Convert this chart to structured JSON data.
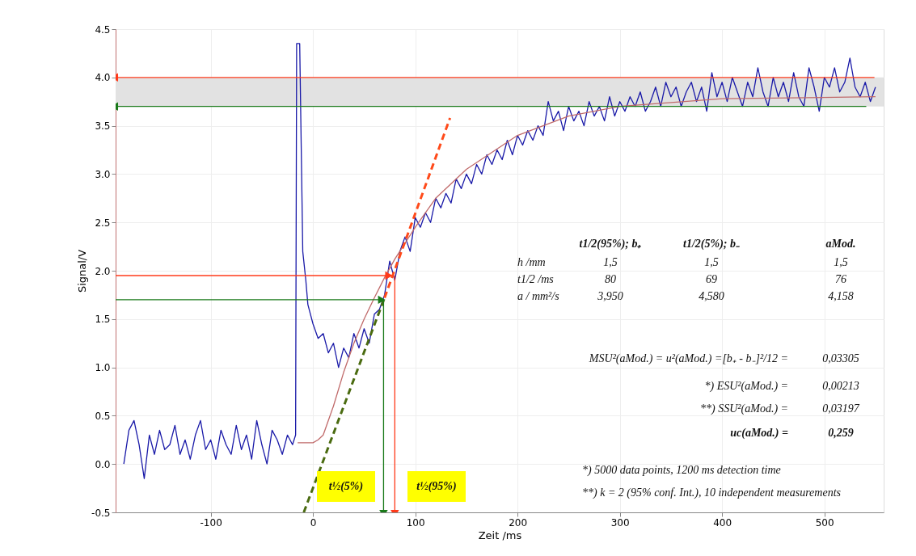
{
  "chart_data": {
    "type": "line",
    "xlabel": "Zeit /ms",
    "ylabel": "Signal/V",
    "xlim": [
      -193,
      558
    ],
    "xticks": [
      -100,
      0,
      100,
      200,
      300,
      400,
      500
    ],
    "ylim": [
      -0.5,
      4.5
    ],
    "yticks": [
      -0.5,
      {
        "value": 0,
        "label": "0.0"
      },
      0.5,
      {
        "value": 1,
        "label": "1.0"
      },
      1.5,
      {
        "value": 2,
        "label": "2.0"
      },
      2.5,
      {
        "value": 3,
        "label": "3.0"
      },
      3.5,
      {
        "value": 4,
        "label": "4.0"
      },
      4.5
    ],
    "grid": true,
    "bands": [
      {
        "axis": "y",
        "from": 3.7,
        "to": 4.0,
        "color": "#e2e2e2"
      }
    ],
    "series": [
      {
        "type": "line",
        "color": "#1a1aa8",
        "line_style": "solid",
        "x": [
          -185,
          -180,
          -175,
          -170,
          -165,
          -160,
          -155,
          -150,
          -145,
          -140,
          -135,
          -130,
          -125,
          -120,
          -115,
          -110,
          -105,
          -100,
          -95,
          -90,
          -85,
          -80,
          -75,
          -70,
          -65,
          -60,
          -55,
          -50,
          -45,
          -40,
          -35,
          -30,
          -25,
          -20,
          -17,
          -16,
          -13,
          -10,
          -7,
          -5,
          0,
          5,
          10,
          15,
          20,
          25,
          30,
          35,
          40,
          45,
          50,
          55,
          60,
          65,
          70,
          75,
          80,
          85,
          90,
          95,
          100,
          105,
          110,
          115,
          120,
          125,
          130,
          135,
          140,
          145,
          150,
          155,
          160,
          165,
          170,
          175,
          180,
          185,
          190,
          195,
          200,
          205,
          210,
          215,
          220,
          225,
          230,
          235,
          240,
          245,
          250,
          255,
          260,
          265,
          270,
          275,
          280,
          285,
          290,
          295,
          300,
          305,
          310,
          315,
          320,
          325,
          330,
          335,
          340,
          345,
          350,
          355,
          360,
          365,
          370,
          375,
          380,
          385,
          390,
          395,
          400,
          405,
          410,
          415,
          420,
          425,
          430,
          435,
          440,
          445,
          450,
          455,
          460,
          465,
          470,
          475,
          480,
          485,
          490,
          495,
          500,
          505,
          510,
          515,
          520,
          525,
          530,
          535,
          540,
          545,
          550
        ],
        "values": [
          0.0,
          0.35,
          0.45,
          0.2,
          -0.15,
          0.3,
          0.1,
          0.35,
          0.15,
          0.2,
          0.4,
          0.1,
          0.25,
          0.05,
          0.3,
          0.45,
          0.15,
          0.25,
          0.05,
          0.35,
          0.2,
          0.1,
          0.4,
          0.15,
          0.3,
          0.05,
          0.45,
          0.2,
          0.0,
          0.35,
          0.25,
          0.1,
          0.3,
          0.2,
          0.3,
          4.35,
          4.35,
          2.2,
          1.9,
          1.65,
          1.45,
          1.3,
          1.35,
          1.15,
          1.25,
          1.0,
          1.2,
          1.1,
          1.35,
          1.2,
          1.4,
          1.25,
          1.55,
          1.6,
          1.75,
          2.1,
          1.9,
          2.2,
          2.35,
          2.2,
          2.55,
          2.45,
          2.6,
          2.5,
          2.75,
          2.65,
          2.8,
          2.7,
          2.95,
          2.85,
          3.0,
          2.9,
          3.1,
          3.0,
          3.2,
          3.1,
          3.25,
          3.15,
          3.35,
          3.2,
          3.4,
          3.3,
          3.45,
          3.35,
          3.5,
          3.4,
          3.75,
          3.55,
          3.65,
          3.45,
          3.7,
          3.55,
          3.65,
          3.5,
          3.75,
          3.6,
          3.7,
          3.55,
          3.8,
          3.6,
          3.75,
          3.65,
          3.8,
          3.7,
          3.85,
          3.65,
          3.75,
          3.9,
          3.7,
          3.95,
          3.8,
          3.9,
          3.7,
          3.85,
          3.95,
          3.75,
          3.9,
          3.65,
          4.05,
          3.8,
          3.95,
          3.75,
          4.0,
          3.85,
          3.7,
          3.95,
          3.8,
          4.1,
          3.85,
          3.7,
          4.0,
          3.8,
          3.95,
          3.75,
          4.05,
          3.8,
          3.7,
          4.1,
          3.9,
          3.65,
          4.0,
          3.9,
          4.1,
          3.85,
          3.95,
          4.2,
          3.9,
          3.8,
          3.95,
          3.75,
          3.9
        ]
      },
      {
        "type": "line",
        "color": "#c06a6a",
        "line_style": "solid",
        "x": [
          -15,
          0,
          5,
          10,
          20,
          30,
          40,
          50,
          60,
          70,
          80,
          100,
          120,
          150,
          200,
          250,
          300,
          400,
          550
        ],
        "values": [
          0.22,
          0.22,
          0.25,
          0.3,
          0.6,
          0.95,
          1.25,
          1.5,
          1.72,
          1.93,
          2.12,
          2.45,
          2.75,
          3.05,
          3.4,
          3.6,
          3.7,
          3.78,
          3.8
        ]
      },
      {
        "type": "line",
        "color": "#4a6b10",
        "line_style": "dashed",
        "x": [
          -9,
          70
        ],
        "values": [
          -0.5,
          1.72
        ]
      },
      {
        "type": "line",
        "color": "#ff4a1a",
        "line_style": "dashed",
        "x": [
          70,
          134
        ],
        "values": [
          1.72,
          3.58
        ]
      },
      {
        "type": "line",
        "color": "#ff3a1a",
        "line_style": "solid",
        "x": [
          549,
          -193
        ],
        "values": [
          4.0,
          4.0
        ]
      },
      {
        "type": "line",
        "color": "#1a7a1a",
        "line_style": "solid",
        "x": [
          541,
          -193
        ],
        "values": [
          3.7,
          3.7
        ]
      },
      {
        "type": "line",
        "color": "#ff3a1a",
        "line_style": "solid",
        "x": [
          -193,
          73
        ],
        "values": [
          1.95,
          1.95
        ]
      },
      {
        "type": "line",
        "color": "#1a7a1a",
        "line_style": "solid",
        "x": [
          -193,
          66
        ],
        "values": [
          1.7,
          1.7
        ]
      },
      {
        "type": "line",
        "color": "#1a7a1a",
        "line_style": "solid",
        "x": [
          69,
          69
        ],
        "values": [
          1.7,
          -0.5
        ]
      },
      {
        "type": "line",
        "color": "#ff3a1a",
        "line_style": "solid",
        "x": [
          80,
          80
        ],
        "values": [
          1.95,
          -0.5
        ]
      }
    ],
    "annotations": [
      "t1/2(95%); b₊",
      "t1/2(5%); b₋",
      "aMod.",
      "h /mm",
      "1,5",
      "1,5",
      "1,5",
      "t1/2 /ms",
      "80",
      "69",
      "76",
      "a / mm²/s",
      "3,950",
      "4,580",
      "4,158",
      "MSU²(aMod.) = u²(aMod.) =[b₊ - b₋]²/12  =",
      "0,03305",
      "*)  ESU²(aMod.)  =",
      "0,00213",
      "**)  SSU²(aMod.)  =",
      "0,03197",
      "uc(aMod.)  =",
      "0,259",
      "*)  5000 data points, 1200 ms detection time",
      "**)  k = 2 (95% conf. Int.), 10 independent measurements",
      "t½(5%)",
      "t½(95%)"
    ]
  }
}
